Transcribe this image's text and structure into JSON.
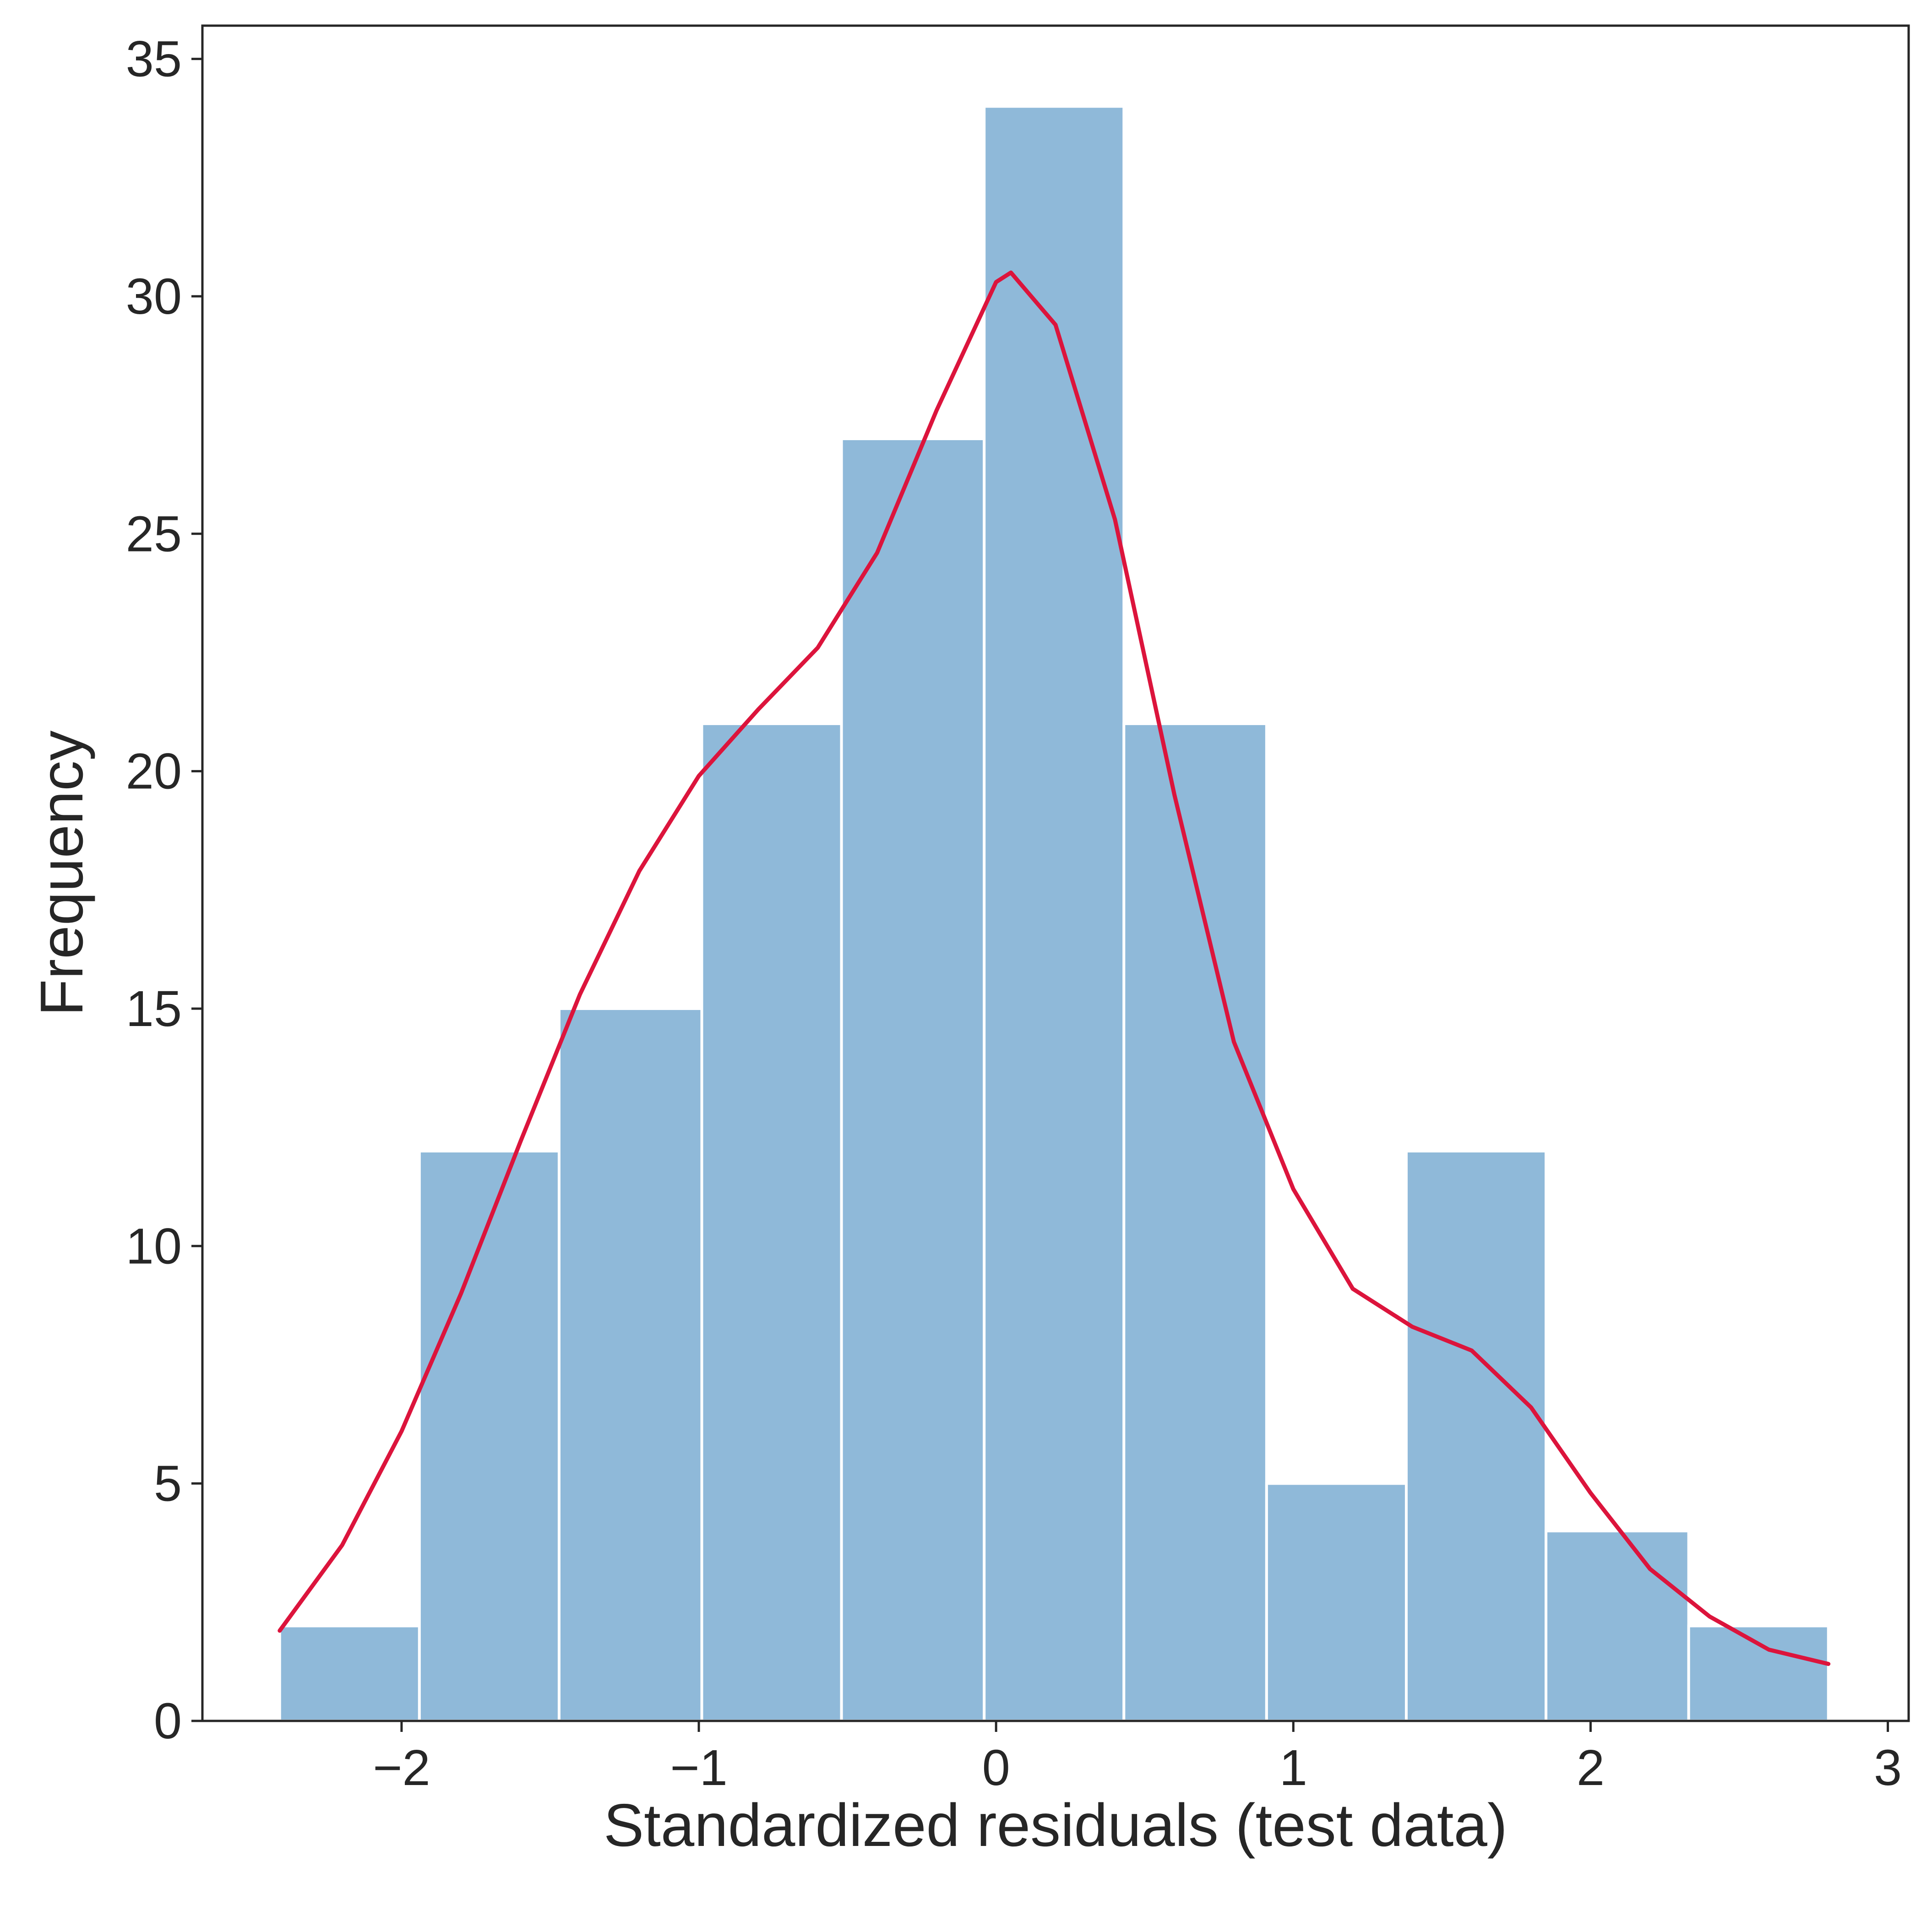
{
  "chart_data": {
    "type": "bar",
    "subtype": "histogram with KDE overlay",
    "xlabel": "Standardized residuals (test data)",
    "ylabel": "Frequency",
    "xlim": [
      -2.67,
      3.07
    ],
    "ylim": [
      0,
      35.7
    ],
    "grid": false,
    "xticks": [
      -2,
      -1,
      0,
      1,
      2,
      3
    ],
    "xtick_labels": [
      "−2",
      "−1",
      "0",
      "1",
      "2",
      "3"
    ],
    "yticks": [
      0,
      5,
      10,
      15,
      20,
      25,
      30,
      35
    ],
    "ytick_labels": [
      "0",
      "5",
      "10",
      "15",
      "20",
      "25",
      "30",
      "35"
    ],
    "bins": [
      {
        "x0": -2.41,
        "x1": -1.94,
        "count": 2
      },
      {
        "x0": -1.94,
        "x1": -1.47,
        "count": 12
      },
      {
        "x0": -1.47,
        "x1": -0.99,
        "count": 15
      },
      {
        "x0": -0.99,
        "x1": -0.52,
        "count": 21
      },
      {
        "x0": -0.52,
        "x1": -0.04,
        "count": 27
      },
      {
        "x0": -0.04,
        "x1": 0.43,
        "count": 34
      },
      {
        "x0": 0.43,
        "x1": 0.91,
        "count": 21
      },
      {
        "x0": 0.91,
        "x1": 1.38,
        "count": 5
      },
      {
        "x0": 1.38,
        "x1": 1.85,
        "count": 12
      },
      {
        "x0": 1.85,
        "x1": 2.33,
        "count": 4
      },
      {
        "x0": 2.33,
        "x1": 2.8,
        "count": 2
      }
    ],
    "kde": {
      "x": [
        -2.41,
        -2.2,
        -2.0,
        -1.8,
        -1.6,
        -1.4,
        -1.2,
        -1.0,
        -0.8,
        -0.6,
        -0.4,
        -0.2,
        0.0,
        0.05,
        0.2,
        0.4,
        0.6,
        0.8,
        1.0,
        1.2,
        1.4,
        1.6,
        1.8,
        2.0,
        2.2,
        2.4,
        2.6,
        2.8
      ],
      "y": [
        1.9,
        3.7,
        6.1,
        9.0,
        12.2,
        15.3,
        17.9,
        19.9,
        21.3,
        22.6,
        24.6,
        27.6,
        30.3,
        30.5,
        29.4,
        25.3,
        19.5,
        14.3,
        11.2,
        9.1,
        8.3,
        7.8,
        6.6,
        4.8,
        3.2,
        2.2,
        1.5,
        1.2
      ]
    },
    "colors": {
      "bars": "#8fb9d9",
      "kde": "#dc143c",
      "axes": "#262626"
    }
  }
}
